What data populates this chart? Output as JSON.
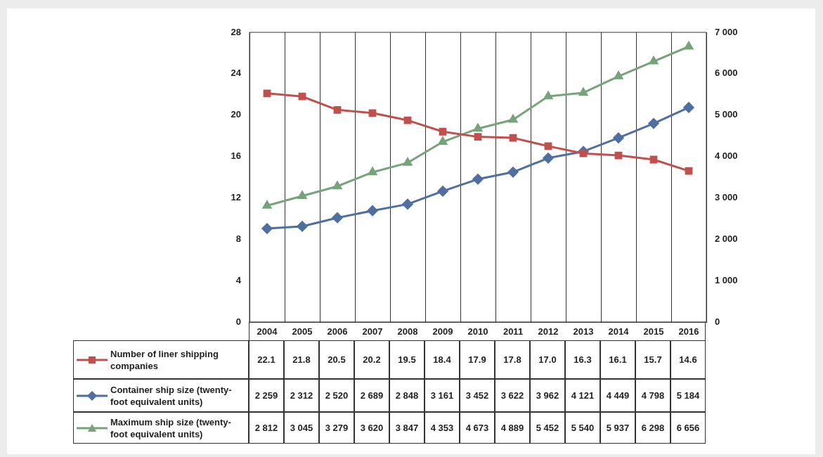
{
  "chart_data": {
    "type": "line",
    "categories": [
      "2004",
      "2005",
      "2006",
      "2007",
      "2008",
      "2009",
      "2010",
      "2011",
      "2012",
      "2013",
      "2014",
      "2015",
      "2016"
    ],
    "ylim": [
      0,
      28
    ],
    "yticks": [
      0,
      4,
      8,
      12,
      16,
      20,
      24,
      28
    ],
    "y2lim": [
      0,
      7000
    ],
    "y2ticks": [
      0,
      {
        "value": 1000,
        "label": "1 000"
      },
      {
        "value": 2000,
        "label": "2 000"
      },
      {
        "value": 3000,
        "label": "3 000"
      },
      {
        "value": 4000,
        "label": "4 000"
      },
      {
        "value": 5000,
        "label": "5 000"
      },
      {
        "value": 6000,
        "label": "6 000"
      },
      {
        "value": 7000,
        "label": "7 000"
      }
    ],
    "grid": "x",
    "legend": "bottom left",
    "series": [
      {
        "name": "Number of liner shipping companies",
        "color": "#c0504d",
        "marker": "square",
        "values": [
          22.1,
          21.8,
          20.5,
          20.2,
          19.5,
          18.4,
          17.9,
          17.8,
          17.0,
          16.3,
          16.1,
          15.7,
          14.6
        ],
        "value_labels": [
          "22.1",
          "21.8",
          "20.5",
          "20.2",
          "19.5",
          "18.4",
          "17.9",
          "17.8",
          "17.0",
          "16.3",
          "16.1",
          "15.7",
          "14.6"
        ]
      },
      {
        "name": "Container ship size (twenty-foot equivalent units)",
        "color": "#4f6fa0",
        "marker": "diamond",
        "axis": "y2",
        "values": [
          2259,
          2312,
          2520,
          2689,
          2848,
          3161,
          3452,
          3622,
          3962,
          4121,
          4449,
          4798,
          5184
        ],
        "value_labels": [
          "2 259",
          "2 312",
          "2 520",
          "2 689",
          "2 848",
          "3 161",
          "3 452",
          "3 622",
          "3 962",
          "4 121",
          "4 449",
          "4 798",
          "5 184"
        ]
      },
      {
        "name": "Maximum ship size (twenty-foot equivalent units)",
        "color": "#77a37a",
        "marker": "triangle",
        "axis": "y2",
        "values": [
          2812,
          3045,
          3279,
          3620,
          3847,
          4353,
          4673,
          4889,
          5452,
          5540,
          5937,
          6298,
          6656
        ],
        "value_labels": [
          "2 812",
          "3 045",
          "3 279",
          "3 620",
          "3 847",
          "4 353",
          "4 673",
          "4 889",
          "5 452",
          "5 540",
          "5 937",
          "6 298",
          "6 656"
        ]
      }
    ]
  }
}
